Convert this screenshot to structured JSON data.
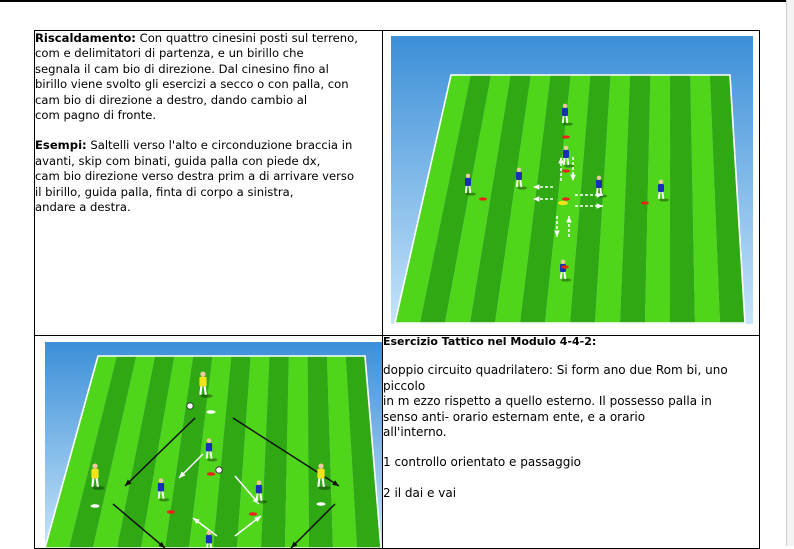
{
  "row1": {
    "warmup_label": "Riscaldamento:",
    "warmup_lines": [
      " Con quattro cinesini posti sul terreno,",
      "com e delimitatori di partenza, e un birillo che",
      "segnala il cam bio di direzione. Dal cinesino fino al",
      "birillo viene svolto gli esercizi a secco o con palla, con",
      "cam bio di direzione a destro, dando cambio al",
      "com pagno di fronte."
    ],
    "examples_label": "Esempi:",
    "examples_lines": [
      " Saltelli verso l'alto e circonduzione braccia in",
      "avanti,  skip com binati, guida palla con piede dx,",
      "cam bio direzione verso destra prim a di arrivare verso",
      "il birillo, guida palla, finta di corpo a sinistra,",
      "andare a destra."
    ]
  },
  "row2": {
    "title": "Esercizio Tattico nel Modulo 4-4-2:",
    "lines": [
      " doppio circuito quadrilatero: Si form ano due Rom bi, uno",
      "piccolo",
      "in m ezzo rispetto a quello esterno. Il possesso palla in",
      "senso anti- orario esternam ente, e a orario",
      "all'interno."
    ],
    "item1": "1 controllo orientato e passaggio",
    "item2": "2 il dai e vai"
  },
  "colors": {
    "pitch_light": "#4fd61a",
    "pitch_dark": "#2fa814",
    "sky_top": "#3c8fd8",
    "sky_bottom": "#bfe0f8",
    "blue_team": "#1a2fb8",
    "yellow_team": "#f2e41a",
    "cone": "#e8231a"
  }
}
